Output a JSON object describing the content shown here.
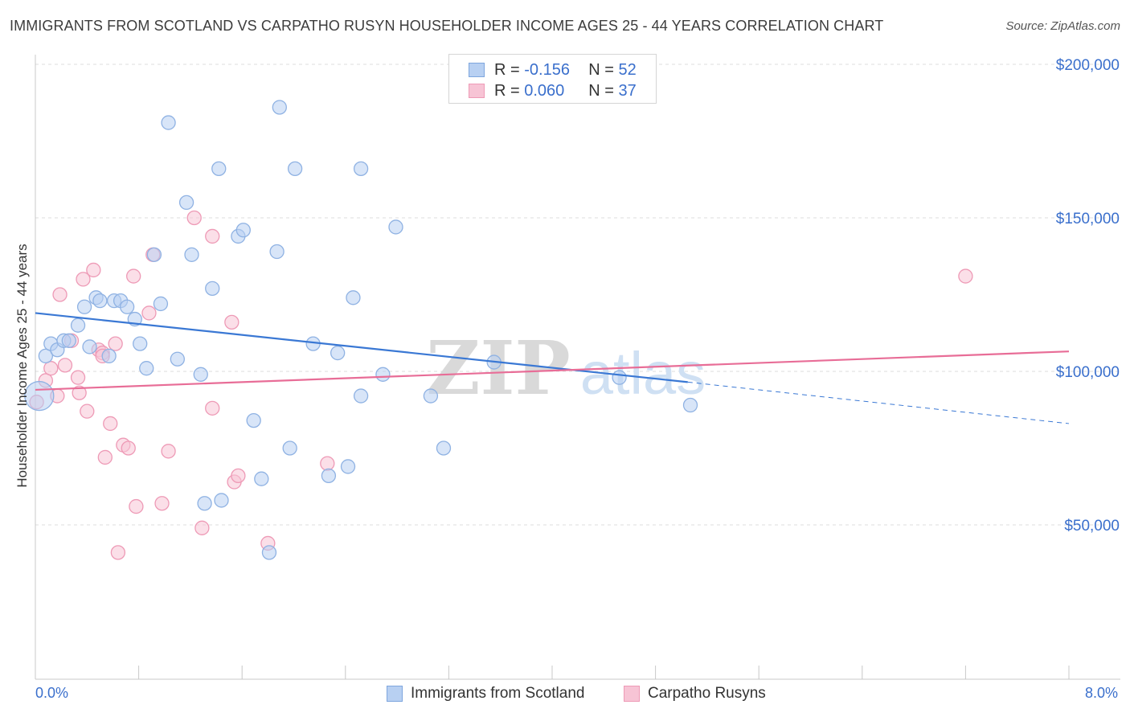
{
  "title": "IMMIGRANTS FROM SCOTLAND VS CARPATHO RUSYN HOUSEHOLDER INCOME AGES 25 - 44 YEARS CORRELATION CHART",
  "source": "Source: ZipAtlas.com",
  "watermark": {
    "zip": "ZIP",
    "atlas": "atlas"
  },
  "legend": {
    "r_label": "R =",
    "n_label": "N =",
    "series1": {
      "r": "-0.156",
      "n": "52"
    },
    "series2": {
      "r": "0.060",
      "n": "37"
    }
  },
  "colors": {
    "blue_fill": "#b8d0f2",
    "blue_stroke": "#8fb2e3",
    "blue_line": "#3a78d4",
    "pink_fill": "#f7c4d5",
    "pink_stroke": "#ee9ab6",
    "pink_line": "#e86d97",
    "axis_text": "#3a6fcc",
    "grid": "#dcdcdc"
  },
  "chart_data": {
    "type": "scatter",
    "title": "IMMIGRANTS FROM SCOTLAND VS CARPATHO RUSYN HOUSEHOLDER INCOME AGES 25 - 44 YEARS CORRELATION CHART",
    "xlabel": "",
    "ylabel": "Householder Income Ages 25 - 44 years",
    "xlim": [
      0,
      8
    ],
    "ylim": [
      0,
      210000
    ],
    "x_tick_labels": [
      "0.0%",
      "8.0%"
    ],
    "y_ticks": [
      50000,
      100000,
      150000,
      200000
    ],
    "y_tick_labels": [
      "$50,000",
      "$100,000",
      "$150,000",
      "$200,000"
    ],
    "grid": true,
    "series": [
      {
        "name": "Immigrants from Scotland",
        "trend": {
          "x": [
            0,
            5.05
          ],
          "y": [
            119000,
            96500
          ],
          "dashed_to": [
            8,
            83000
          ]
        },
        "points": [
          [
            0.03,
            92000
          ],
          [
            0.08,
            105000
          ],
          [
            0.12,
            109000
          ],
          [
            0.17,
            107000
          ],
          [
            0.22,
            110000
          ],
          [
            0.26,
            110000
          ],
          [
            0.33,
            115000
          ],
          [
            0.38,
            121000
          ],
          [
            0.42,
            108000
          ],
          [
            0.47,
            124000
          ],
          [
            0.5,
            123000
          ],
          [
            0.57,
            105000
          ],
          [
            0.61,
            123000
          ],
          [
            0.66,
            123000
          ],
          [
            0.71,
            121000
          ],
          [
            0.77,
            117000
          ],
          [
            0.81,
            109000
          ],
          [
            0.86,
            101000
          ],
          [
            0.92,
            138000
          ],
          [
            0.97,
            122000
          ],
          [
            1.03,
            181000
          ],
          [
            1.1,
            104000
          ],
          [
            1.17,
            155000
          ],
          [
            1.21,
            138000
          ],
          [
            1.28,
            99000
          ],
          [
            1.37,
            127000
          ],
          [
            1.42,
            166000
          ],
          [
            1.44,
            58000
          ],
          [
            1.57,
            144000
          ],
          [
            1.61,
            146000
          ],
          [
            1.69,
            84000
          ],
          [
            1.75,
            65000
          ],
          [
            1.81,
            41000
          ],
          [
            1.87,
            139000
          ],
          [
            1.89,
            186000
          ],
          [
            1.97,
            75000
          ],
          [
            2.01,
            166000
          ],
          [
            2.15,
            109000
          ],
          [
            2.27,
            66000
          ],
          [
            2.34,
            106000
          ],
          [
            2.42,
            69000
          ],
          [
            2.46,
            124000
          ],
          [
            2.52,
            92000
          ],
          [
            2.52,
            166000
          ],
          [
            2.69,
            99000
          ],
          [
            2.79,
            147000
          ],
          [
            3.06,
            92000
          ],
          [
            3.16,
            75000
          ],
          [
            3.55,
            103000
          ],
          [
            4.52,
            98000
          ],
          [
            5.07,
            89000
          ],
          [
            1.31,
            57000
          ]
        ]
      },
      {
        "name": "Carpatho Rusyns",
        "trend": {
          "x": [
            0,
            8
          ],
          "y": [
            94000,
            106500
          ]
        },
        "points": [
          [
            0.01,
            90000
          ],
          [
            0.08,
            97000
          ],
          [
            0.12,
            101000
          ],
          [
            0.17,
            92000
          ],
          [
            0.19,
            125000
          ],
          [
            0.23,
            102000
          ],
          [
            0.28,
            110000
          ],
          [
            0.33,
            98000
          ],
          [
            0.34,
            93000
          ],
          [
            0.37,
            130000
          ],
          [
            0.4,
            87000
          ],
          [
            0.45,
            133000
          ],
          [
            0.49,
            107000
          ],
          [
            0.52,
            106000
          ],
          [
            0.54,
            72000
          ],
          [
            0.58,
            83000
          ],
          [
            0.62,
            109000
          ],
          [
            0.64,
            41000
          ],
          [
            0.68,
            76000
          ],
          [
            0.72,
            75000
          ],
          [
            0.76,
            131000
          ],
          [
            0.78,
            56000
          ],
          [
            0.88,
            119000
          ],
          [
            0.91,
            138000
          ],
          [
            0.98,
            57000
          ],
          [
            1.03,
            74000
          ],
          [
            1.23,
            150000
          ],
          [
            1.29,
            49000
          ],
          [
            1.37,
            88000
          ],
          [
            1.37,
            144000
          ],
          [
            1.52,
            116000
          ],
          [
            1.54,
            64000
          ],
          [
            1.57,
            66000
          ],
          [
            1.8,
            44000
          ],
          [
            2.26,
            70000
          ],
          [
            7.2,
            131000
          ],
          [
            0.52,
            105000
          ]
        ]
      }
    ]
  },
  "bottom_legend": {
    "series1": "Immigrants from Scotland",
    "series2": "Carpatho Rusyns"
  }
}
